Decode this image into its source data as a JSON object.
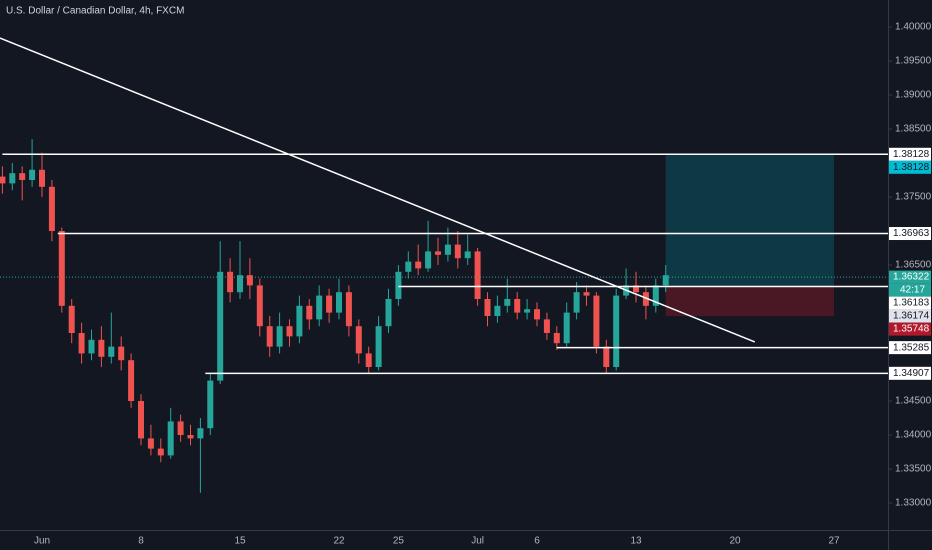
{
  "chart_data": {
    "type": "candlestick",
    "title": "U.S. Dollar / Canadian Dollar, 4h, FXCM",
    "categories": [
      null,
      null,
      null,
      null,
      "Jun",
      null,
      null,
      null,
      null,
      null,
      null,
      null,
      null,
      null,
      "8",
      null,
      null,
      null,
      null,
      null,
      null,
      null,
      null,
      null,
      "15",
      null,
      null,
      null,
      null,
      null,
      null,
      null,
      null,
      null,
      "22",
      null,
      null,
      null,
      null,
      null,
      "25",
      null,
      null,
      null,
      null,
      null,
      null,
      null,
      "Jul",
      null,
      null,
      null,
      null,
      null,
      "6",
      null,
      null,
      null,
      null,
      null,
      null,
      null,
      null,
      null,
      "13",
      null,
      null,
      null,
      null,
      null,
      null,
      null,
      null,
      null,
      "20",
      null,
      null,
      null,
      null,
      null,
      null,
      null,
      null,
      null,
      "27",
      null,
      null,
      null,
      null,
      null
    ],
    "open": [
      1.378,
      1.377,
      1.3785,
      1.3775,
      1.379,
      1.3765,
      1.37,
      1.359,
      1.355,
      1.352,
      1.354,
      1.3515,
      1.353,
      1.351,
      1.345,
      1.3395,
      1.338,
      1.337,
      1.342,
      1.34,
      1.3395,
      1.341,
      1.348,
      1.364,
      1.361,
      1.3635,
      1.362,
      1.356,
      1.353,
      1.356,
      1.3545,
      1.359,
      1.357,
      1.3605,
      1.358,
      1.361,
      1.356,
      1.352,
      1.35,
      1.356,
      1.36,
      1.364,
      1.3655,
      1.3645,
      1.367,
      1.3665,
      1.368,
      1.366,
      1.367,
      1.36,
      1.3575,
      1.359,
      1.36,
      1.358,
      1.3585,
      1.357,
      1.355,
      1.3535,
      1.358,
      1.361,
      1.3605,
      1.353,
      1.35,
      1.3605,
      1.362,
      1.361,
      1.359,
      1.362,
      null,
      null,
      null,
      null,
      null,
      null,
      null,
      null,
      null,
      null,
      null,
      null,
      null,
      null,
      null,
      null,
      null,
      null,
      null,
      null,
      null,
      null
    ],
    "high": [
      1.3795,
      1.38,
      1.3795,
      1.3835,
      1.3815,
      1.3775,
      1.3705,
      1.36,
      1.3565,
      1.3555,
      1.356,
      1.358,
      1.3545,
      1.352,
      1.346,
      1.3415,
      1.3395,
      1.344,
      1.343,
      1.3415,
      1.3425,
      1.349,
      1.3685,
      1.366,
      1.3685,
      1.366,
      1.363,
      1.3575,
      1.358,
      1.357,
      1.3605,
      1.36,
      1.362,
      1.3615,
      1.363,
      1.362,
      1.357,
      1.353,
      1.3575,
      1.3615,
      1.365,
      1.367,
      1.368,
      1.3715,
      1.369,
      1.3705,
      1.37,
      1.3695,
      1.3675,
      1.361,
      1.3605,
      1.363,
      1.361,
      1.36,
      1.3595,
      1.358,
      1.356,
      1.3595,
      1.3625,
      1.362,
      1.361,
      1.354,
      1.3615,
      1.3645,
      1.364,
      1.362,
      1.363,
      1.365,
      null,
      null,
      null,
      null,
      null,
      null,
      null,
      null,
      null,
      null,
      null,
      null,
      null,
      null,
      null,
      null,
      null,
      null,
      null,
      null,
      null,
      null
    ],
    "low": [
      1.3755,
      1.376,
      1.3745,
      1.3765,
      1.375,
      1.3685,
      1.358,
      1.3535,
      1.3505,
      1.351,
      1.35,
      1.3505,
      1.3495,
      1.344,
      1.3385,
      1.337,
      1.336,
      1.3365,
      1.339,
      1.3385,
      1.3315,
      1.34,
      1.3475,
      1.3595,
      1.36,
      1.36,
      1.3545,
      1.3515,
      1.352,
      1.353,
      1.3535,
      1.3555,
      1.356,
      1.3565,
      1.357,
      1.3545,
      1.3505,
      1.349,
      1.3495,
      1.355,
      1.359,
      1.363,
      1.3635,
      1.364,
      1.365,
      1.3655,
      1.3645,
      1.365,
      1.359,
      1.356,
      1.3565,
      1.358,
      1.357,
      1.357,
      1.356,
      1.354,
      1.3525,
      1.353,
      1.357,
      1.359,
      1.352,
      1.349,
      1.3495,
      1.36,
      1.3595,
      1.357,
      1.358,
      1.361,
      null,
      null,
      null,
      null,
      null,
      null,
      null,
      null,
      null,
      null,
      null,
      null,
      null,
      null,
      null,
      null,
      null,
      null,
      null,
      null,
      null,
      null
    ],
    "close": [
      1.377,
      1.3785,
      1.3775,
      1.379,
      1.3765,
      1.37,
      1.359,
      1.355,
      1.352,
      1.354,
      1.3515,
      1.353,
      1.351,
      1.345,
      1.3395,
      1.338,
      1.337,
      1.342,
      1.34,
      1.3395,
      1.341,
      1.348,
      1.364,
      1.361,
      1.3635,
      1.362,
      1.356,
      1.353,
      1.356,
      1.3545,
      1.359,
      1.357,
      1.3605,
      1.358,
      1.361,
      1.356,
      1.352,
      1.35,
      1.356,
      1.36,
      1.364,
      1.3655,
      1.3645,
      1.367,
      1.3665,
      1.368,
      1.366,
      1.367,
      1.36,
      1.3575,
      1.359,
      1.36,
      1.358,
      1.3585,
      1.357,
      1.355,
      1.3535,
      1.358,
      1.361,
      1.3605,
      1.353,
      1.35,
      1.3605,
      1.362,
      1.361,
      1.359,
      1.362,
      1.3635,
      null,
      null,
      null,
      null,
      null,
      null,
      null,
      null,
      null,
      null,
      null,
      null,
      null,
      null,
      null,
      null,
      null,
      null,
      null,
      null,
      null,
      null
    ],
    "up_color": "#26a69a",
    "down_color": "#ef5350",
    "ylim": [
      1.32603,
      1.40397
    ],
    "yticks": [
      {
        "value": 1.33,
        "label": "1.33000"
      },
      {
        "value": 1.335,
        "label": "1.33500"
      },
      {
        "value": 1.34,
        "label": "1.34000"
      },
      {
        "value": 1.345,
        "label": "1.34500"
      },
      {
        "value": 1.365,
        "label": "1.36500"
      },
      {
        "value": 1.375,
        "label": "1.37500"
      },
      {
        "value": 1.385,
        "label": "1.38500"
      },
      {
        "value": 1.39,
        "label": "1.39000"
      },
      {
        "value": 1.395,
        "label": "1.39500"
      },
      {
        "value": 1.4,
        "label": "1.40000"
      }
    ],
    "lines": [
      {
        "price": 1.38128,
        "start_index": 0
      },
      {
        "price": 1.36963,
        "start_index": 5.6
      },
      {
        "price": 1.36183,
        "start_index": 40
      },
      {
        "price": 1.35285,
        "start_index": 56
      },
      {
        "price": 1.34907,
        "start_index": 20.5
      }
    ],
    "trendline": {
      "start_index": 0,
      "start_price": 1.39838,
      "end_index": 76,
      "end_price": 1.35368,
      "color": "#ffffff"
    },
    "position": {
      "start_index": 67,
      "end_index": 84,
      "target": 1.38128,
      "entry": 1.36174,
      "stop": 1.35748,
      "target_color": "#00bcd4",
      "stop_color": "#b2182b"
    },
    "current": {
      "price": 1.36322,
      "countdown": "42:17",
      "color": "#26a69a"
    }
  }
}
